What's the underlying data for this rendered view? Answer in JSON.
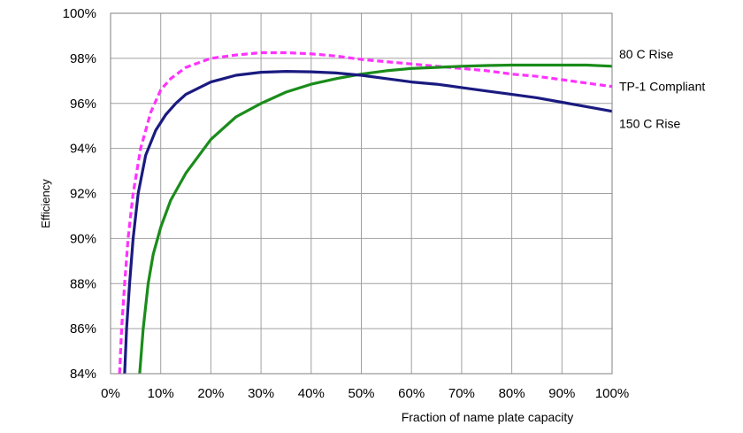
{
  "chart_data": {
    "type": "line",
    "xlabel": "Fraction of name plate capacity",
    "ylabel": "Efficiency",
    "xlim": [
      0,
      100
    ],
    "ylim": [
      84,
      100
    ],
    "x_ticks": [
      0,
      10,
      20,
      30,
      40,
      50,
      60,
      70,
      80,
      90,
      100
    ],
    "x_tick_labels": [
      "0%",
      "10%",
      "20%",
      "30%",
      "40%",
      "50%",
      "60%",
      "70%",
      "80%",
      "90%",
      "100%"
    ],
    "y_ticks": [
      84,
      86,
      88,
      90,
      92,
      94,
      96,
      98,
      100
    ],
    "y_tick_labels": [
      "84%",
      "86%",
      "88%",
      "90%",
      "92%",
      "94%",
      "96%",
      "98%",
      "100%"
    ],
    "grid": true,
    "series": [
      {
        "name": "80 C Rise",
        "color": "#1a8c1a",
        "dash": "solid",
        "x": [
          5.8,
          6.5,
          7.5,
          8.5,
          10,
          12,
          15,
          20,
          25,
          30,
          35,
          40,
          45,
          50,
          55,
          60,
          65,
          70,
          75,
          80,
          85,
          90,
          95,
          100
        ],
        "y": [
          84.0,
          86.0,
          88.0,
          89.3,
          90.5,
          91.7,
          92.9,
          94.4,
          95.4,
          96.0,
          96.5,
          96.85,
          97.1,
          97.3,
          97.45,
          97.55,
          97.6,
          97.65,
          97.68,
          97.7,
          97.7,
          97.7,
          97.7,
          97.65
        ]
      },
      {
        "name": "TP-1 Compliant",
        "color": "#ff33ff",
        "dash": "dashed",
        "x": [
          1.8,
          2.2,
          2.8,
          3.5,
          4.5,
          6,
          8,
          10,
          12,
          15,
          20,
          25,
          30,
          35,
          40,
          45,
          50,
          55,
          60,
          65,
          70,
          75,
          80,
          85,
          90,
          95,
          100
        ],
        "y": [
          84.0,
          86.0,
          88.0,
          90.0,
          92.0,
          94.0,
          95.6,
          96.6,
          97.1,
          97.6,
          98.0,
          98.15,
          98.25,
          98.25,
          98.2,
          98.1,
          97.95,
          97.85,
          97.75,
          97.65,
          97.55,
          97.45,
          97.3,
          97.2,
          97.05,
          96.9,
          96.75
        ]
      },
      {
        "name": "150 C Rise",
        "color": "#1a1a80",
        "dash": "solid",
        "x": [
          2.8,
          3.2,
          3.8,
          4.5,
          5.5,
          7,
          9,
          11,
          13,
          15,
          20,
          25,
          30,
          35,
          40,
          45,
          50,
          55,
          60,
          65,
          70,
          75,
          80,
          85,
          90,
          95,
          100
        ],
        "y": [
          84.0,
          86.0,
          88.0,
          90.0,
          92.0,
          93.7,
          94.8,
          95.5,
          96.0,
          96.4,
          96.95,
          97.25,
          97.38,
          97.42,
          97.4,
          97.35,
          97.25,
          97.1,
          96.95,
          96.85,
          96.7,
          96.55,
          96.4,
          96.25,
          96.05,
          95.85,
          95.65
        ]
      }
    ],
    "series_label_positions": [
      "right-end",
      "right-end",
      "right-end"
    ]
  }
}
